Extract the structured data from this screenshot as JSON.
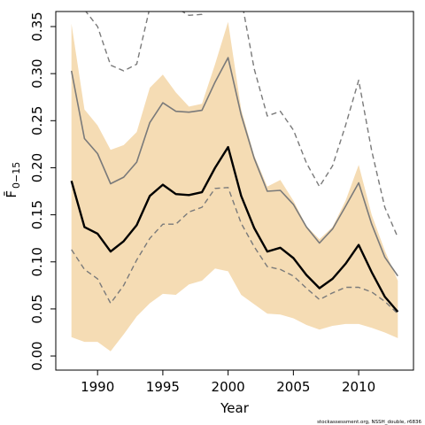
{
  "chart_data": {
    "type": "line",
    "xlabel": "Year",
    "ylabel": "F̄",
    "ylabel_sub": "0−15",
    "credit": "stockassessment.org, NSSH_double, r6836",
    "xlim": [
      1986.8,
      2014.2
    ],
    "ylim": [
      -0.015,
      0.366
    ],
    "x_ticks": [
      1990,
      1995,
      2000,
      2005,
      2010
    ],
    "y_ticks": [
      0.0,
      0.05,
      0.1,
      0.15,
      0.2,
      0.25,
      0.3,
      0.35
    ],
    "y_tick_labels": [
      "0.00",
      "0.05",
      "0.10",
      "0.15",
      "0.20",
      "0.25",
      "0.30",
      "0.35"
    ],
    "colors": {
      "band": "#f5dcb4",
      "estimate": "#000000",
      "retro": "#7a7a7a"
    },
    "x": [
      1988,
      1989,
      1990,
      1991,
      1992,
      1993,
      1994,
      1995,
      1996,
      1997,
      1998,
      1999,
      2000,
      2001,
      2002,
      2003,
      2004,
      2005,
      2006,
      2007,
      2008,
      2009,
      2010,
      2011,
      2012,
      2013
    ],
    "series": [
      {
        "role": "band-upper",
        "values": [
          0.353,
          0.262,
          0.245,
          0.219,
          0.224,
          0.238,
          0.285,
          0.299,
          0.28,
          0.265,
          0.268,
          0.31,
          0.355,
          0.262,
          0.213,
          0.18,
          0.187,
          0.165,
          0.138,
          0.124,
          0.137,
          0.165,
          0.203,
          0.15,
          0.112,
          0.08
        ]
      },
      {
        "role": "band-lower",
        "values": [
          0.02,
          0.015,
          0.015,
          0.005,
          0.023,
          0.042,
          0.056,
          0.066,
          0.065,
          0.076,
          0.08,
          0.093,
          0.09,
          0.065,
          0.055,
          0.045,
          0.044,
          0.04,
          0.033,
          0.028,
          0.032,
          0.034,
          0.034,
          0.03,
          0.025,
          0.019
        ]
      },
      {
        "role": "estimate",
        "values": [
          0.186,
          0.137,
          0.13,
          0.111,
          0.122,
          0.139,
          0.17,
          0.182,
          0.172,
          0.171,
          0.174,
          0.2,
          0.222,
          0.17,
          0.136,
          0.111,
          0.115,
          0.104,
          0.086,
          0.072,
          0.082,
          0.098,
          0.118,
          0.089,
          0.063,
          0.047
        ]
      },
      {
        "role": "retro-estimate",
        "values": [
          0.303,
          0.231,
          0.215,
          0.183,
          0.19,
          0.206,
          0.248,
          0.269,
          0.26,
          0.259,
          0.261,
          0.291,
          0.317,
          0.256,
          0.21,
          0.175,
          0.176,
          0.161,
          0.137,
          0.12,
          0.135,
          0.159,
          0.184,
          0.14,
          0.105,
          0.085
        ]
      },
      {
        "role": "retro-upper",
        "values": [
          0.38,
          0.368,
          0.35,
          0.309,
          0.303,
          0.31,
          0.37,
          0.38,
          0.37,
          0.362,
          0.363,
          0.4,
          0.42,
          0.38,
          0.305,
          0.255,
          0.26,
          0.24,
          0.205,
          0.18,
          0.202,
          0.245,
          0.293,
          0.218,
          0.158,
          0.126
        ]
      },
      {
        "role": "retro-lower",
        "values": [
          0.113,
          0.092,
          0.082,
          0.056,
          0.075,
          0.102,
          0.125,
          0.14,
          0.14,
          0.153,
          0.158,
          0.178,
          0.179,
          0.141,
          0.116,
          0.095,
          0.092,
          0.085,
          0.072,
          0.06,
          0.067,
          0.073,
          0.073,
          0.068,
          0.058,
          0.045
        ]
      }
    ]
  }
}
